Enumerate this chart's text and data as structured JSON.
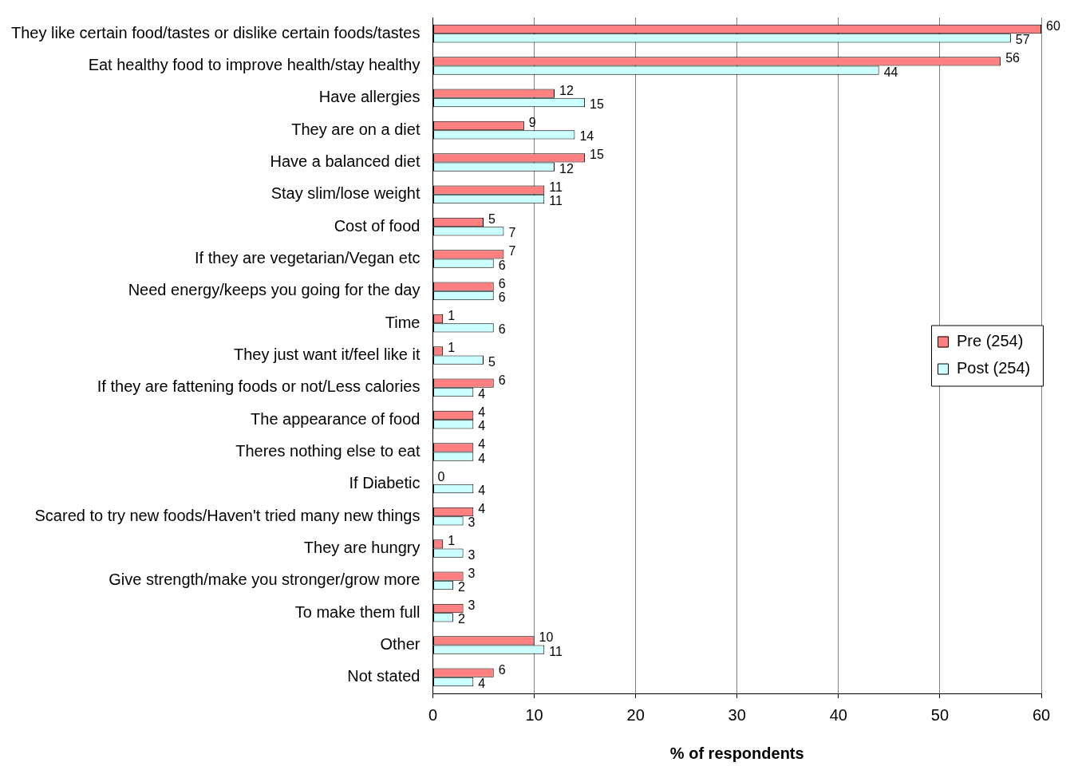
{
  "chart_data": {
    "type": "bar",
    "orientation": "horizontal",
    "xlabel": "% of respondents",
    "categories": [
      "They like certain food/tastes or dislike certain foods/tastes",
      "Eat healthy food to improve health/stay healthy",
      "Have allergies",
      "They are on a diet",
      "Have a balanced diet",
      "Stay slim/lose weight",
      "Cost of food",
      "If they are vegetarian/Vegan etc",
      "Need energy/keeps you going for the day",
      "Time",
      "They just want it/feel like it",
      "If they are fattening foods or not/Less calories",
      "The appearance of food",
      "Theres nothing else to eat",
      "If Diabetic",
      "Scared to try new foods/Haven't tried many new things",
      "They are hungry",
      "Give strength/make you stronger/grow more",
      "To make them full",
      "Other",
      "Not stated"
    ],
    "series": [
      {
        "name": "Pre (254)",
        "color": "#ff8080",
        "values": [
          60,
          56,
          12,
          9,
          15,
          11,
          5,
          7,
          6,
          1,
          1,
          6,
          4,
          4,
          0,
          4,
          1,
          3,
          3,
          10,
          6
        ]
      },
      {
        "name": "Post (254)",
        "color": "#ccffff",
        "values": [
          57,
          44,
          15,
          14,
          12,
          11,
          7,
          6,
          6,
          6,
          5,
          4,
          4,
          4,
          4,
          3,
          3,
          2,
          2,
          11,
          4
        ]
      }
    ],
    "xlim": [
      0,
      60
    ],
    "xticks": [
      0,
      10,
      20,
      30,
      40,
      50,
      60
    ],
    "grid": "x",
    "legend": "right",
    "data_labels": true
  }
}
